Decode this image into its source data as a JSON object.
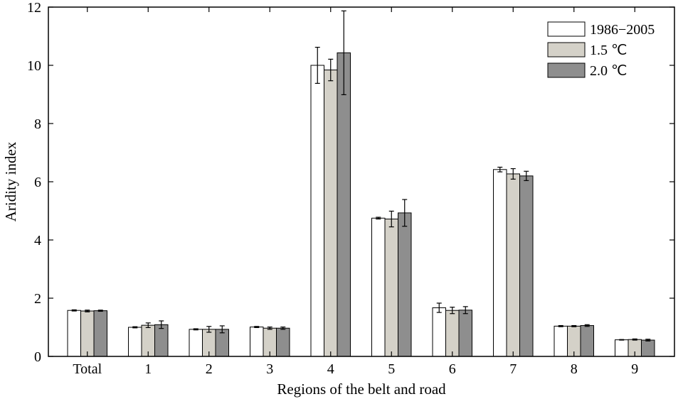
{
  "chart_data": {
    "type": "bar",
    "xlabel": "Regions of the belt and road",
    "ylabel": "Aridity index",
    "ylim": [
      0,
      12
    ],
    "yticks": [
      0,
      2,
      4,
      6,
      8,
      10,
      12
    ],
    "categories": [
      "Total",
      "1",
      "2",
      "3",
      "4",
      "5",
      "6",
      "7",
      "8",
      "9"
    ],
    "grid": false,
    "legend": "top-right",
    "series": [
      {
        "name": "1986−2005",
        "color": "#ffffff",
        "values": [
          1.58,
          1.0,
          0.93,
          1.01,
          10.0,
          4.75,
          1.67,
          6.42,
          1.04,
          0.57
        ],
        "errors": [
          0.02,
          0.02,
          0.02,
          0.02,
          0.62,
          0.03,
          0.16,
          0.08,
          0.02,
          0.01
        ]
      },
      {
        "name": "1.5 ℃",
        "color": "#d4d1c8",
        "values": [
          1.56,
          1.07,
          0.93,
          0.97,
          9.84,
          4.72,
          1.58,
          6.27,
          1.04,
          0.58
        ],
        "errors": [
          0.03,
          0.08,
          0.1,
          0.04,
          0.37,
          0.27,
          0.11,
          0.18,
          0.02,
          0.02
        ]
      },
      {
        "name": "2.0 ℃",
        "color": "#8e8e8e",
        "values": [
          1.57,
          1.09,
          0.93,
          0.97,
          10.43,
          4.93,
          1.59,
          6.2,
          1.06,
          0.56
        ],
        "errors": [
          0.02,
          0.13,
          0.12,
          0.04,
          1.44,
          0.46,
          0.12,
          0.16,
          0.03,
          0.03
        ]
      }
    ]
  }
}
